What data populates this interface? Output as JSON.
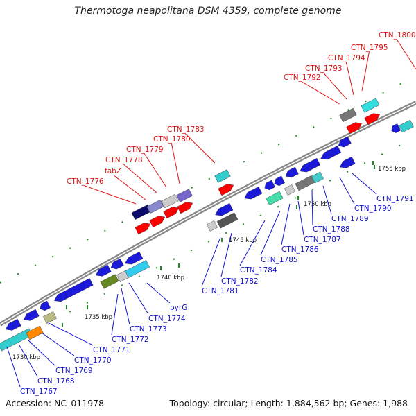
{
  "title": "Thermotoga neapolitana DSM 4359, complete genome",
  "accession": "Accession: NC_011978",
  "topology": "Topology: circular; Length: 1,884,562 bp; Genes: 1,988",
  "colors": {
    "backbone": "#888888",
    "forward_label": "#dd1111",
    "reverse_label": "#1111cc",
    "tick": "#228822"
  },
  "position_labels": [
    "1730 kbp",
    "1735 kbp",
    "1740 kbp",
    "1745 kbp",
    "1750 kbp",
    "1755 kbp"
  ],
  "top_gene_labels": [
    "CTN_1776",
    "fabZ",
    "CTN_1778",
    "CTN_1779",
    "CTN_1780",
    "CTN_1783",
    "CTN_1792",
    "CTN_1793",
    "CTN_1794",
    "CTN_1795",
    "CTN_1800"
  ],
  "bottom_gene_labels": [
    "CTN_1767",
    "CTN_1768",
    "CTN_1769",
    "CTN_1770",
    "CTN_1771",
    "CTN_1772",
    "CTN_1773",
    "CTN_1774",
    "pyrG",
    "CTN_1781",
    "CTN_1782",
    "CTN_1784",
    "CTN_1785",
    "CTN_1786",
    "CTN_1787",
    "CTN_1788",
    "CTN_1789",
    "CTN_1790",
    "CTN_1791"
  ]
}
